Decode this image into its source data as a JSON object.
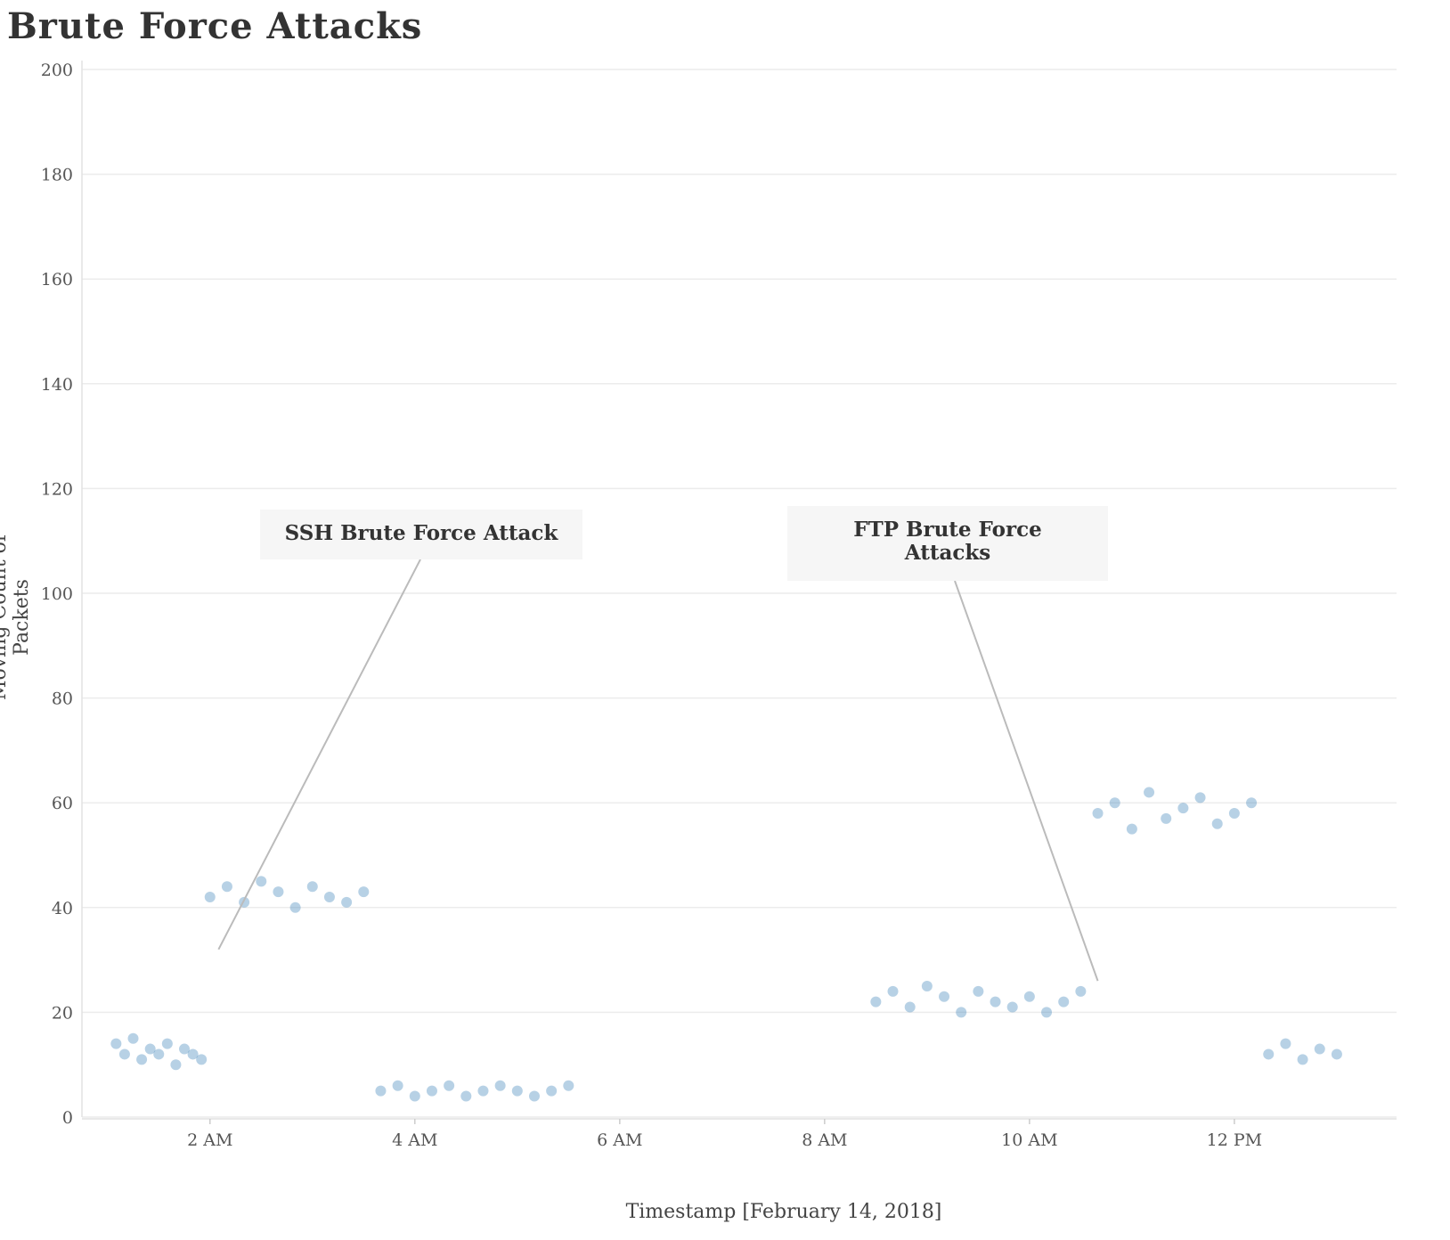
{
  "chart_data": {
    "type": "scatter",
    "title": "Brute Force Attacks",
    "xlabel": "Timestamp [February 14, 2018]",
    "ylabel": "Moving Count of Packets",
    "xlim": [
      "2018-02-14T00:45",
      "2018-02-14T13:35"
    ],
    "ylim": [
      0,
      200
    ],
    "x_ticks": [
      {
        "value": "2018-02-14T02:00",
        "label": "2 AM"
      },
      {
        "value": "2018-02-14T04:00",
        "label": "4 AM"
      },
      {
        "value": "2018-02-14T06:00",
        "label": "6 AM"
      },
      {
        "value": "2018-02-14T08:00",
        "label": "8 AM"
      },
      {
        "value": "2018-02-14T10:00",
        "label": "10 AM"
      },
      {
        "value": "2018-02-14T12:00",
        "label": "12 PM"
      }
    ],
    "y_ticks": [
      0,
      20,
      40,
      60,
      80,
      100,
      120,
      140,
      160,
      180,
      200
    ],
    "grid": "horizontal",
    "color": "#4a8bbf",
    "series": [
      {
        "x": [
          "2018-02-14T01:05",
          "2018-02-14T01:10",
          "2018-02-14T01:15",
          "2018-02-14T01:20",
          "2018-02-14T01:25",
          "2018-02-14T01:30",
          "2018-02-14T01:35",
          "2018-02-14T01:40",
          "2018-02-14T01:45",
          "2018-02-14T01:50",
          "2018-02-14T01:55",
          "2018-02-14T02:00",
          "2018-02-14T02:10",
          "2018-02-14T02:20",
          "2018-02-14T02:30",
          "2018-02-14T02:40",
          "2018-02-14T02:50",
          "2018-02-14T03:00",
          "2018-02-14T03:10",
          "2018-02-14T03:20",
          "2018-02-14T03:30",
          "2018-02-14T03:40",
          "2018-02-14T03:50",
          "2018-02-14T04:00",
          "2018-02-14T04:10",
          "2018-02-14T04:20",
          "2018-02-14T04:30",
          "2018-02-14T04:40",
          "2018-02-14T04:50",
          "2018-02-14T05:00",
          "2018-02-14T05:10",
          "2018-02-14T05:20",
          "2018-02-14T05:30",
          "2018-02-14T08:30",
          "2018-02-14T08:40",
          "2018-02-14T08:50",
          "2018-02-14T09:00",
          "2018-02-14T09:10",
          "2018-02-14T09:20",
          "2018-02-14T09:30",
          "2018-02-14T09:40",
          "2018-02-14T09:50",
          "2018-02-14T10:00",
          "2018-02-14T10:10",
          "2018-02-14T10:20",
          "2018-02-14T10:30",
          "2018-02-14T10:40",
          "2018-02-14T10:50",
          "2018-02-14T11:00",
          "2018-02-14T11:10",
          "2018-02-14T11:20",
          "2018-02-14T11:30",
          "2018-02-14T11:40",
          "2018-02-14T11:50",
          "2018-02-14T12:00",
          "2018-02-14T12:10",
          "2018-02-14T12:20",
          "2018-02-14T12:30",
          "2018-02-14T12:40",
          "2018-02-14T12:50",
          "2018-02-14T13:00"
        ],
        "y": [
          14,
          12,
          15,
          11,
          13,
          12,
          14,
          10,
          13,
          12,
          11,
          42,
          44,
          41,
          45,
          43,
          40,
          44,
          42,
          41,
          43,
          5,
          6,
          4,
          5,
          6,
          4,
          5,
          6,
          5,
          4,
          5,
          6,
          22,
          24,
          21,
          25,
          23,
          20,
          24,
          22,
          21,
          23,
          20,
          22,
          24,
          58,
          60,
          55,
          62,
          57,
          59,
          61,
          56,
          58,
          60,
          12,
          14,
          11,
          13,
          12
        ]
      }
    ],
    "annotations": [
      {
        "text": "SSH Brute Force Attack",
        "x": "2018-02-14T02:05",
        "y": 32
      },
      {
        "text": "FTP Brute Force Attacks",
        "x": "2018-02-14T10:40",
        "y": 26
      }
    ]
  }
}
